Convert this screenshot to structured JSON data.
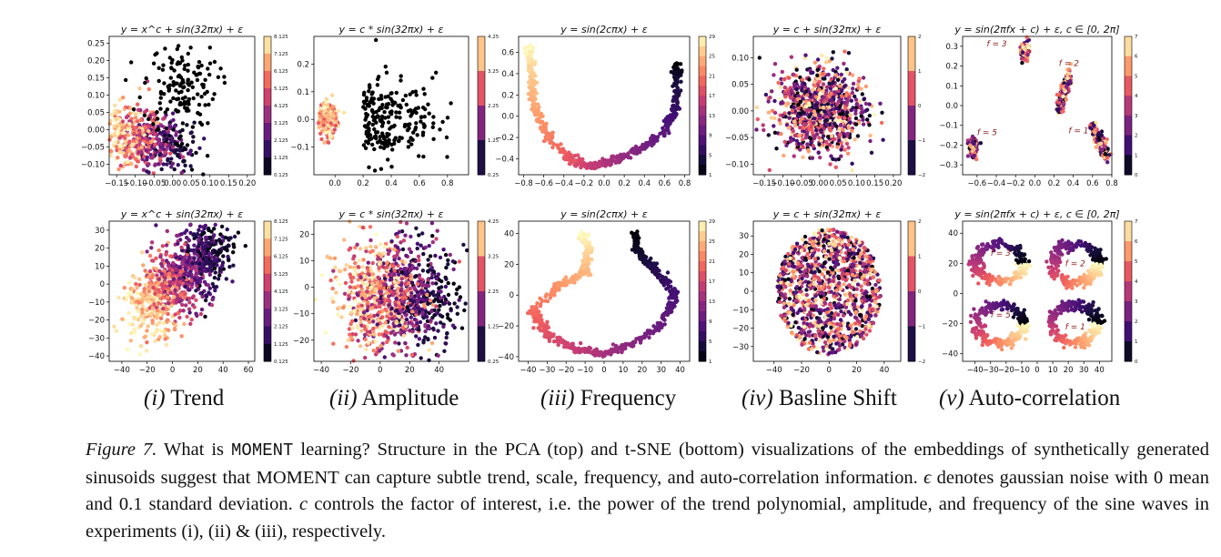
{
  "figure": {
    "colormap": [
      "#000004",
      "#180f3d",
      "#440f76",
      "#721f81",
      "#9e2f7f",
      "#cd4071",
      "#f1605d",
      "#fd9668",
      "#feca8d",
      "#fcfdbf"
    ],
    "point_color_default": "#000000",
    "panels": [
      {
        "label_roman": "(i)",
        "label_text": "Trend",
        "rows": [
          {
            "kind": "PCA",
            "title": "y = x^c + sin(32πx) + ε",
            "xlim": [
              -0.17,
              0.22
            ],
            "ylim": [
              -0.13,
              0.27
            ],
            "xticks": [
              "−0.15",
              "−0.10",
              "−0.05",
              "0.00",
              "0.05",
              "0.10",
              "0.15",
              "0.20"
            ],
            "xtick_values": [
              -0.15,
              -0.1,
              -0.05,
              0.0,
              0.05,
              0.1,
              0.15,
              0.2
            ],
            "yticks": [
              "0.25",
              "0.20",
              "0.15",
              "0.10",
              "0.05",
              "0.00",
              "−0.05",
              "−0.10"
            ],
            "ytick_values": [
              0.25,
              0.2,
              0.15,
              0.1,
              0.05,
              0.0,
              -0.05,
              -0.1
            ],
            "colorbar": {
              "ticks": [
                "8.125",
                "7.125",
                "6.125",
                "5.125",
                "4.125",
                "3.125",
                "2.125",
                "1.125",
                "0.125"
              ],
              "n": 8
            }
          },
          {
            "kind": "t-SNE",
            "title": "y = x^c + sin(32πx) + ε",
            "xlim": [
              -50,
              65
            ],
            "ylim": [
              -43,
              35
            ],
            "xticks": [
              "−40",
              "−20",
              "0",
              "20",
              "40",
              "60"
            ],
            "xtick_values": [
              -40,
              -20,
              0,
              20,
              40,
              60
            ],
            "yticks": [
              "30",
              "20",
              "10",
              "0",
              "−10",
              "−20",
              "−30",
              "−40"
            ],
            "ytick_values": [
              30,
              20,
              10,
              0,
              -10,
              -20,
              -30,
              -40
            ],
            "colorbar": {
              "ticks": [
                "8.125",
                "7.125",
                "6.125",
                "5.125",
                "4.125",
                "3.125",
                "2.125",
                "1.125",
                "0.125"
              ],
              "n": 8
            }
          }
        ]
      },
      {
        "label_roman": "(ii)",
        "label_text": "Amplitude",
        "rows": [
          {
            "kind": "PCA",
            "title": "y = c * sin(32πx) + ε",
            "xlim": [
              -0.15,
              0.95
            ],
            "ylim": [
              -0.2,
              0.3
            ],
            "xticks": [
              "0.0",
              "0.2",
              "0.4",
              "0.6",
              "0.8"
            ],
            "xtick_values": [
              0,
              0.2,
              0.4,
              0.6,
              0.8
            ],
            "yticks": [
              "0.2",
              "0.1",
              "0.0",
              "−0.1"
            ],
            "ytick_values": [
              0.2,
              0.1,
              0.0,
              -0.1
            ],
            "colorbar": {
              "ticks": [
                "4.25",
                "3.25",
                "2.25",
                "1.25",
                "0.25"
              ],
              "n": 4
            }
          },
          {
            "kind": "t-SNE",
            "title": "y = c * sin(32πx) + ε",
            "xlim": [
              -45,
              60
            ],
            "ylim": [
              -28,
              25
            ],
            "xticks": [
              "−40",
              "−20",
              "0",
              "20",
              "40"
            ],
            "xtick_values": [
              -40,
              -20,
              0,
              20,
              40
            ],
            "yticks": [
              "20",
              "10",
              "0",
              "−10",
              "−20"
            ],
            "ytick_values": [
              20,
              10,
              0,
              -10,
              -20
            ],
            "colorbar": {
              "ticks": [
                "4.25",
                "3.25",
                "2.25",
                "1.25",
                "0.25"
              ],
              "n": 4
            }
          }
        ]
      },
      {
        "label_roman": "(iii)",
        "label_text": "Frequency",
        "rows": [
          {
            "kind": "PCA",
            "title": "y = sin(2cπx) + ε",
            "xlim": [
              -0.85,
              0.85
            ],
            "ylim": [
              -0.55,
              0.75
            ],
            "xticks": [
              "−0.8",
              "−0.6",
              "−0.4",
              "−0.2",
              "0.0",
              "0.2",
              "0.4",
              "0.6",
              "0.8"
            ],
            "xtick_values": [
              -0.8,
              -0.6,
              -0.4,
              -0.2,
              0,
              0.2,
              0.4,
              0.6,
              0.8
            ],
            "yticks": [
              "0.6",
              "0.4",
              "0.2",
              "0.0",
              "−0.2",
              "−0.4"
            ],
            "ytick_values": [
              0.6,
              0.4,
              0.2,
              0,
              -0.2,
              -0.4
            ],
            "colorbar": {
              "ticks": [
                "29",
                "25",
                "21",
                "17",
                "13",
                "9",
                "5",
                "1"
              ],
              "n": 14
            }
          },
          {
            "kind": "t-SNE",
            "title": "y = sin(2cπx) + ε",
            "xlim": [
              -45,
              45
            ],
            "ylim": [
              -43,
              48
            ],
            "xticks": [
              "−40",
              "−30",
              "−20",
              "−10",
              "0",
              "10",
              "20",
              "30",
              "40"
            ],
            "xtick_values": [
              -40,
              -30,
              -20,
              -10,
              0,
              10,
              20,
              30,
              40
            ],
            "yticks": [
              "40",
              "20",
              "0",
              "−20",
              "−40"
            ],
            "ytick_values": [
              40,
              20,
              0,
              -20,
              -40
            ],
            "colorbar": {
              "ticks": [
                "29",
                "25",
                "21",
                "17",
                "13",
                "9",
                "5",
                "1"
              ],
              "n": 14
            }
          }
        ]
      },
      {
        "label_roman": "(iv)",
        "label_text": "Basline Shift",
        "rows": [
          {
            "kind": "PCA",
            "title": "y = c + sin(32πx) + ε",
            "xlim": [
              -0.18,
              0.22
            ],
            "ylim": [
              -0.12,
              0.14
            ],
            "xticks": [
              "−0.15",
              "−0.10",
              "−0.05",
              "0.00",
              "0.05",
              "0.10",
              "0.15",
              "0.20"
            ],
            "xtick_values": [
              -0.15,
              -0.1,
              -0.05,
              0,
              0.05,
              0.1,
              0.15,
              0.2
            ],
            "yticks": [
              "0.10",
              "0.05",
              "0.00",
              "−0.05",
              "−0.10"
            ],
            "ytick_values": [
              0.1,
              0.05,
              0,
              -0.05,
              -0.1
            ],
            "colorbar": {
              "ticks": [
                "2",
                "1",
                "0",
                "−1",
                "−2"
              ],
              "n": 4
            }
          },
          {
            "kind": "t-SNE",
            "title": "y = c + sin(32πx) + ε",
            "xlim": [
              -55,
              52
            ],
            "ylim": [
              -38,
              38
            ],
            "xticks": [
              "−40",
              "−20",
              "0",
              "20",
              "40"
            ],
            "xtick_values": [
              -40,
              -20,
              0,
              20,
              40
            ],
            "yticks": [
              "30",
              "20",
              "10",
              "0",
              "−10",
              "−20",
              "−30"
            ],
            "ytick_values": [
              30,
              20,
              10,
              0,
              -10,
              -20,
              -30
            ],
            "colorbar": {
              "ticks": [
                "2",
                "1",
                "0",
                "−1",
                "−2"
              ],
              "n": 4
            }
          }
        ]
      },
      {
        "label_roman": "(v)",
        "label_text": "Auto-correlation",
        "rows": [
          {
            "kind": "PCA",
            "title": "y = sin(2πfx + c) + ε,  c ∈ [0, 2π]",
            "xlim": [
              -0.75,
              0.8
            ],
            "ylim": [
              -0.35,
              0.35
            ],
            "xticks": [
              "−0.6",
              "−0.4",
              "−0.2",
              "0.0",
              "0.2",
              "0.4",
              "0.6",
              "0.8"
            ],
            "xtick_values": [
              -0.6,
              -0.4,
              -0.2,
              0,
              0.2,
              0.4,
              0.6,
              0.8
            ],
            "yticks": [
              "0.3",
              "0.2",
              "0.1",
              "0.0",
              "−0.1",
              "−0.2",
              "−0.3"
            ],
            "ytick_values": [
              0.3,
              0.2,
              0.1,
              0,
              -0.1,
              -0.2,
              -0.3
            ],
            "colorbar": {
              "ticks": [
                "7",
                "6",
                "5",
                "4",
                "3",
                "2",
                "1",
                "0"
              ],
              "n": 7
            },
            "annotations": [
              "f = 3",
              "f = 2",
              "f = 5",
              "f = 1"
            ]
          },
          {
            "kind": "t-SNE",
            "title": "y = sin(2πfx + c) + ε,  c ∈ [0, 2π]",
            "xlim": [
              -48,
              48
            ],
            "ylim": [
              -45,
              48
            ],
            "xticks": [
              "−40",
              "−30",
              "−20",
              "−10",
              "0",
              "10",
              "20",
              "30",
              "40"
            ],
            "xtick_values": [
              -40,
              -30,
              -20,
              -10,
              0,
              10,
              20,
              30,
              40
            ],
            "yticks": [
              "40",
              "20",
              "0",
              "−20",
              "−40"
            ],
            "ytick_values": [
              40,
              20,
              0,
              -20,
              -40
            ],
            "colorbar": {
              "ticks": [
                "7",
                "6",
                "5",
                "4",
                "3",
                "2",
                "1",
                "0"
              ],
              "n": 7
            },
            "annotations": [
              "f = 3",
              "f = 2",
              "f = 5",
              "f = 1"
            ]
          }
        ]
      }
    ]
  },
  "caption": {
    "fig_no": "Figure 7.",
    "part1": " What is ",
    "mono": "MOMENT",
    "part2": " learning? Structure in the PCA (top) and t-SNE (bottom) visualizations of the embeddings of synthetically generated sinusoids suggest that MOMENT can capture subtle trend, scale, frequency, and auto-correlation information. ",
    "eps": "ϵ",
    "part3": " denotes gaussian noise with 0 mean and 0.1 standard deviation. ",
    "c": "c",
    "part4": " controls the factor of interest, i.e. the power of the trend polynomial, amplitude, and frequency of the sine waves in experiments (i), (ii) & (iii), respectively."
  }
}
